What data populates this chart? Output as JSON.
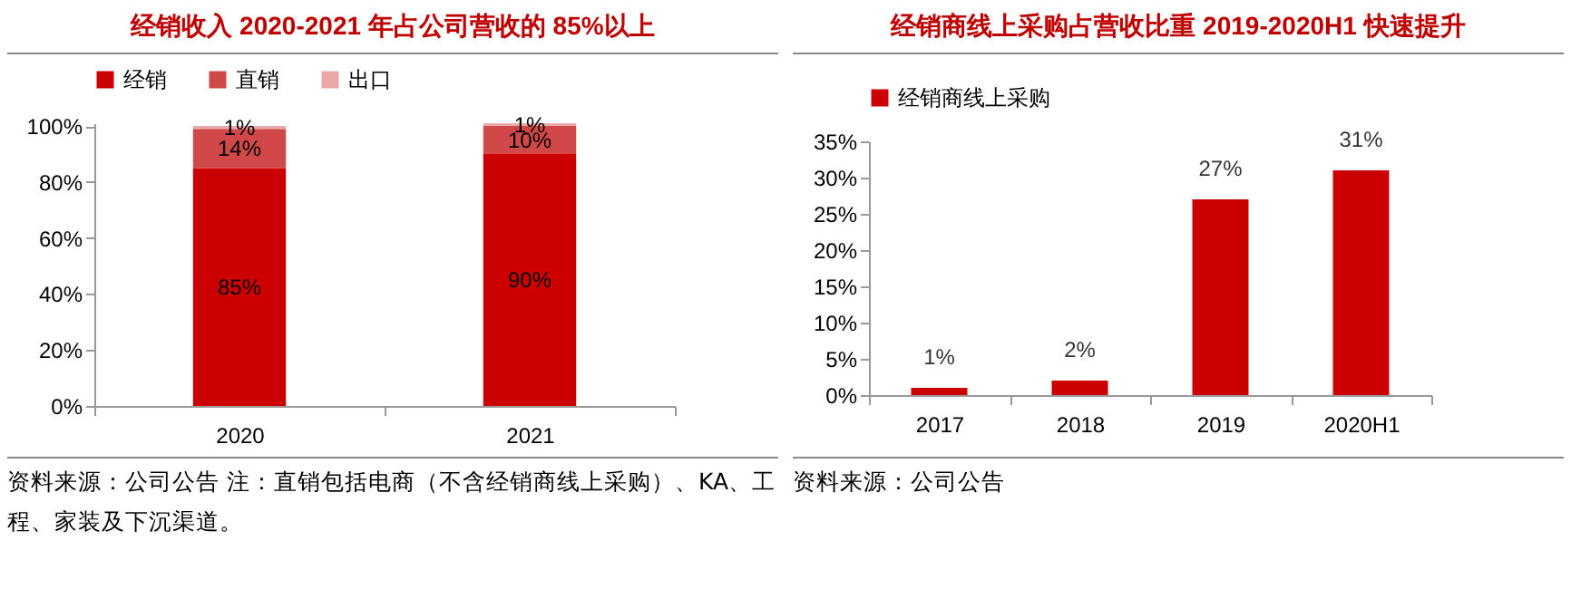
{
  "chart_data": [
    {
      "type": "bar",
      "title": "经销收入 2020-2021 年占公司营收的 85%以上",
      "categories": [
        "2020",
        "2021"
      ],
      "stacked": true,
      "legend": "top",
      "series": [
        {
          "name": "经销",
          "color": "#cc0000",
          "values": [
            85,
            90
          ],
          "value_labels": [
            "85%",
            "90%"
          ]
        },
        {
          "name": "直销",
          "color": "#d04848",
          "values": [
            14,
            10
          ],
          "value_labels": [
            "14%",
            "10%"
          ]
        },
        {
          "name": "出口",
          "color": "#eaa8a8",
          "values": [
            1,
            1
          ],
          "value_labels": [
            "1%",
            "1%"
          ]
        }
      ],
      "ylim": [
        0,
        101
      ],
      "yticks": [
        {
          "value": 0,
          "label": "0%"
        },
        {
          "value": 20,
          "label": "20%"
        },
        {
          "value": 40,
          "label": "40%"
        },
        {
          "value": 60,
          "label": "60%"
        },
        {
          "value": 80,
          "label": "80%"
        },
        {
          "value": 100,
          "label": "100%"
        }
      ],
      "annotations": [
        "资料来源：公司公告 注：直销包括电商（不含经销商线上采购）、KA、工程、家装及下沉渠道。"
      ]
    },
    {
      "type": "bar",
      "title": "经销商线上采购占营收比重 2019-2020H1 快速提升",
      "categories": [
        "2017",
        "2018",
        "2019",
        "2020H1"
      ],
      "legend": "top",
      "series": [
        {
          "name": "经销商线上采购",
          "color": "#cc0000",
          "values": [
            1,
            2,
            27,
            31
          ],
          "value_labels": [
            "1%",
            "2%",
            "27%",
            "31%"
          ]
        }
      ],
      "ylim": [
        0,
        35
      ],
      "yticks": [
        {
          "value": 0,
          "label": "0%"
        },
        {
          "value": 5,
          "label": "5%"
        },
        {
          "value": 10,
          "label": "10%"
        },
        {
          "value": 15,
          "label": "15%"
        },
        {
          "value": 20,
          "label": "20%"
        },
        {
          "value": 25,
          "label": "25%"
        },
        {
          "value": 30,
          "label": "30%"
        },
        {
          "value": 35,
          "label": "35%"
        }
      ],
      "annotations": [
        "资料来源：公司公告"
      ]
    }
  ]
}
